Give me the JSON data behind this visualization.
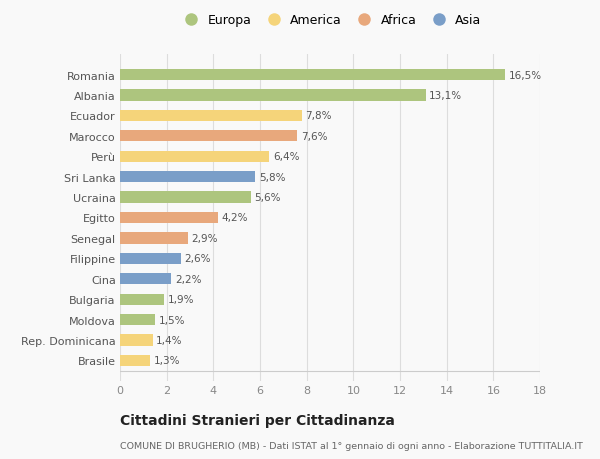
{
  "countries": [
    "Romania",
    "Albania",
    "Ecuador",
    "Marocco",
    "Perù",
    "Sri Lanka",
    "Ucraina",
    "Egitto",
    "Senegal",
    "Filippine",
    "Cina",
    "Bulgaria",
    "Moldova",
    "Rep. Dominicana",
    "Brasile"
  ],
  "values": [
    16.5,
    13.1,
    7.8,
    7.6,
    6.4,
    5.8,
    5.6,
    4.2,
    2.9,
    2.6,
    2.2,
    1.9,
    1.5,
    1.4,
    1.3
  ],
  "labels": [
    "16,5%",
    "13,1%",
    "7,8%",
    "7,6%",
    "6,4%",
    "5,8%",
    "5,6%",
    "4,2%",
    "2,9%",
    "2,6%",
    "2,2%",
    "1,9%",
    "1,5%",
    "1,4%",
    "1,3%"
  ],
  "continents": [
    "Europa",
    "Europa",
    "America",
    "Africa",
    "America",
    "Asia",
    "Europa",
    "Africa",
    "Africa",
    "Asia",
    "Asia",
    "Europa",
    "Europa",
    "America",
    "America"
  ],
  "continent_colors": {
    "Europa": "#adc57e",
    "America": "#f5d47a",
    "Africa": "#e8a87c",
    "Asia": "#7a9ec8"
  },
  "legend_order": [
    "Europa",
    "America",
    "Africa",
    "Asia"
  ],
  "title": "Cittadini Stranieri per Cittadinanza",
  "subtitle": "COMUNE DI BRUGHERIO (MB) - Dati ISTAT al 1° gennaio di ogni anno - Elaborazione TUTTITALIA.IT",
  "xlim": [
    0,
    18
  ],
  "xticks": [
    0,
    2,
    4,
    6,
    8,
    10,
    12,
    14,
    16,
    18
  ],
  "background_color": "#f9f9f9",
  "grid_color": "#dddddd",
  "bar_height": 0.55
}
